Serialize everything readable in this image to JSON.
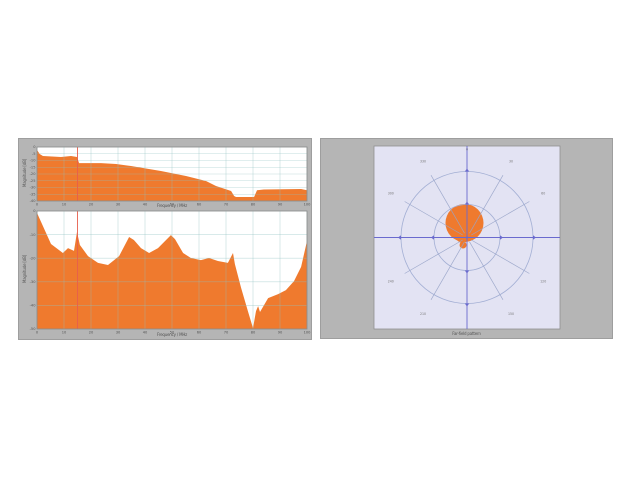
{
  "window": {
    "background": "#ffffff"
  },
  "panel": {
    "background": "#b5b5b5",
    "border": "#9e9e9e"
  },
  "colors": {
    "series_orange": "#ef7a2e",
    "grid_teal": "#8fc0c0",
    "marker_red": "#e75f4c",
    "plot_background": "#ffffff",
    "plot_border": "#8a8a8a",
    "polar_background": "#e3e3f3",
    "polar_axis_blue": "#6a6ace",
    "polar_ring_blue": "#a3afd4",
    "polar_spoke_blue": "#98a4c8",
    "tick_text": "#555555",
    "polar_label_text": "#777777"
  },
  "chart_data": [
    {
      "type": "area",
      "name": "upper-frequency-response",
      "xlabel": "Frequency / MHz",
      "ylabel": "Magnitude [dB]",
      "xlim": [
        0,
        100
      ],
      "ylim": [
        -40,
        0
      ],
      "xticks": [
        "0",
        "10",
        "20",
        "30",
        "40",
        "50",
        "60",
        "70",
        "80",
        "90",
        "100"
      ],
      "yticks": [
        "0",
        "-5",
        "-10",
        "-15",
        "-20",
        "-25",
        "-30",
        "-35",
        "-40"
      ],
      "grid": true,
      "marker_x": 15.0,
      "x": [
        0,
        1,
        2.2,
        8.9,
        12.6,
        14.8,
        15.6,
        23.7,
        29.3,
        34.8,
        45.9,
        55.2,
        62.6,
        66.3,
        71.9,
        73,
        73.7,
        80.4,
        81.5,
        84,
        97.8,
        100
      ],
      "y": [
        -2.2,
        -5.2,
        -6.7,
        -7.4,
        -6.7,
        -7.4,
        -11.9,
        -11.9,
        -12.6,
        -14.1,
        -17.8,
        -21.5,
        -25.2,
        -28.9,
        -32.6,
        -36.3,
        -37,
        -37,
        -32,
        -31.5,
        -31.1,
        -32
      ]
    },
    {
      "type": "area",
      "name": "lower-frequency-response",
      "xlabel": "Frequency / MHz",
      "ylabel": "Magnitude [dB]",
      "xlim": [
        0,
        100
      ],
      "ylim": [
        -50,
        0
      ],
      "xticks": [
        "0",
        "10",
        "20",
        "30",
        "40",
        "50",
        "60",
        "70",
        "80",
        "90",
        "100"
      ],
      "yticks": [
        "0",
        "-10",
        "-20",
        "-30",
        "-40",
        "-50"
      ],
      "grid": true,
      "marker_x": 15.0,
      "x": [
        0,
        5.2,
        9.6,
        11.5,
        13.7,
        14.8,
        15.9,
        18.9,
        22.6,
        26.3,
        30.4,
        34.1,
        35.9,
        38.5,
        41.5,
        44.8,
        49.6,
        51.1,
        54.1,
        57,
        60.7,
        63.7,
        67,
        70.7,
        72.6,
        73.3,
        75.6,
        78.1,
        80,
        81.1,
        81.9,
        82.6,
        85.6,
        89.3,
        92.2,
        95.2,
        97.8,
        100
      ],
      "y": [
        -0.8,
        -14,
        -17.8,
        -15.7,
        -16.9,
        -8.9,
        -14.4,
        -19.1,
        -22,
        -22.9,
        -19.1,
        -11,
        -12.3,
        -15.7,
        -17.8,
        -15.7,
        -10.2,
        -11.9,
        -17.8,
        -19.9,
        -20.8,
        -19.9,
        -21.2,
        -22,
        -17.8,
        -22.5,
        -32.6,
        -42.4,
        -49.6,
        -42.4,
        -40.3,
        -42.8,
        -36.9,
        -35.2,
        -33.5,
        -29.7,
        -23.7,
        -12.7
      ]
    },
    {
      "type": "polar",
      "name": "far-field-pattern",
      "caption": "Far-field pattern",
      "top_label": "0",
      "angle_labels": [
        {
          "deg": 30,
          "label": "30"
        },
        {
          "deg": 60,
          "label": "60"
        },
        {
          "deg": 120,
          "label": "120"
        },
        {
          "deg": 150,
          "label": "150"
        },
        {
          "deg": 210,
          "label": "210"
        },
        {
          "deg": 240,
          "label": "240"
        },
        {
          "deg": 300,
          "label": "300"
        },
        {
          "deg": 330,
          "label": "330"
        }
      ],
      "rings_rel": [
        0.5,
        1.0
      ],
      "spoke_step_deg": 30,
      "lobe": {
        "cx": -0.038,
        "cy": -0.22,
        "r": 0.288
      },
      "lobe_dot": {
        "cx": -0.06,
        "cy": 0.114,
        "r": 0.053
      }
    }
  ]
}
